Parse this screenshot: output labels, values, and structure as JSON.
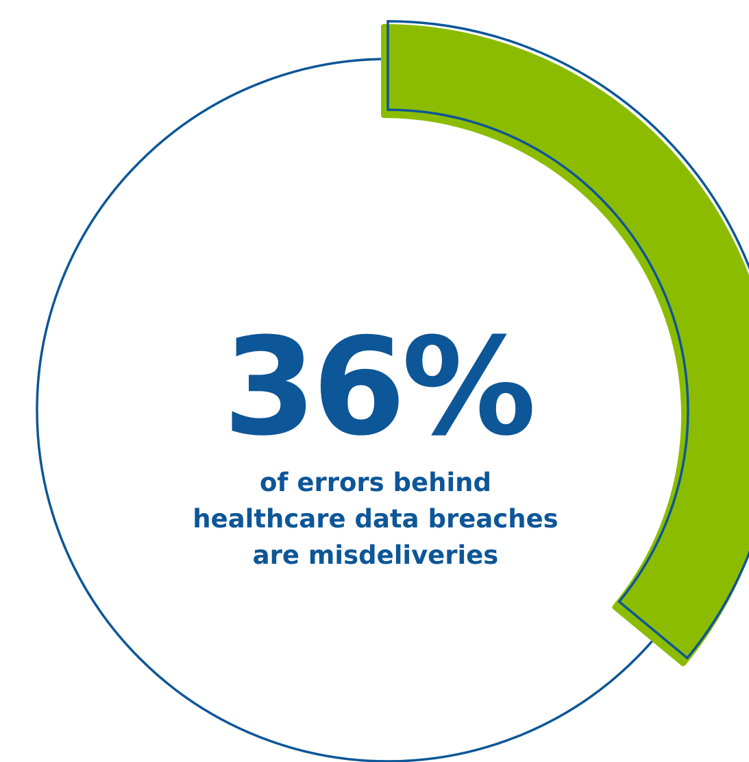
{
  "chart_data": {
    "type": "pie",
    "value_percent": 36,
    "stat_label": "36%",
    "caption_lines": [
      "of errors behind",
      "healthcare data breaches",
      "are misdeliveries"
    ],
    "colors": {
      "highlight": "#8cbc00",
      "outline": "#0d5697",
      "text": "#0d5697",
      "background": "#ffffff"
    }
  }
}
